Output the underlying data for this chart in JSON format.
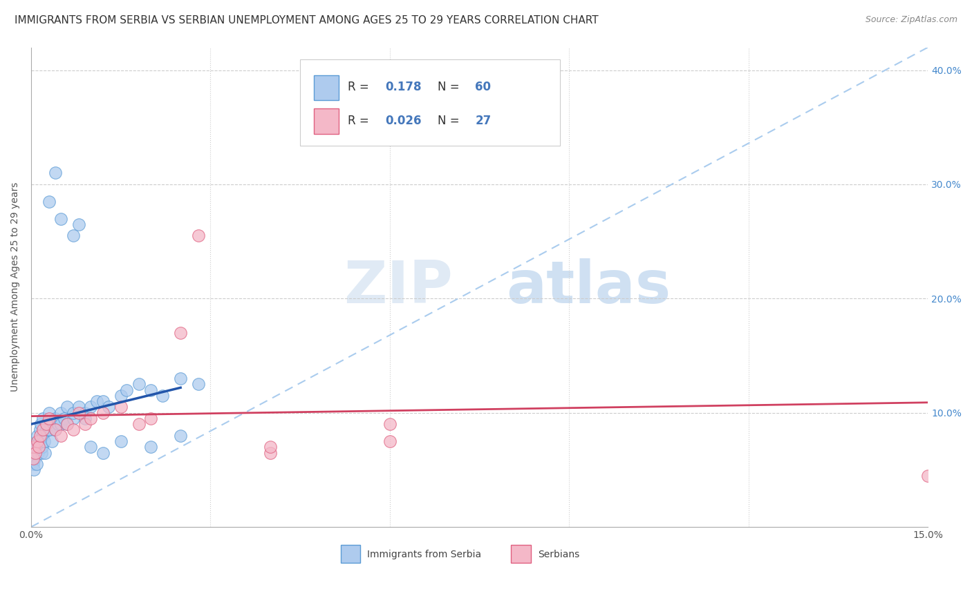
{
  "title": "IMMIGRANTS FROM SERBIA VS SERBIAN UNEMPLOYMENT AMONG AGES 25 TO 29 YEARS CORRELATION CHART",
  "source": "Source: ZipAtlas.com",
  "ylabel": "Unemployment Among Ages 25 to 29 years",
  "xlim": [
    0.0,
    0.15
  ],
  "ylim": [
    0.0,
    0.42
  ],
  "watermark_zip": "ZIP",
  "watermark_atlas": "atlas",
  "scatter_color_blue": "#aecbee",
  "scatter_edgecolor_blue": "#5b9bd5",
  "scatter_color_pink": "#f4b8c8",
  "scatter_edgecolor_pink": "#e06080",
  "line_color_blue": "#2255aa",
  "line_color_pink": "#d04060",
  "dashed_line_color": "#aaccee",
  "blue_line_x": [
    0.0,
    0.025
  ],
  "blue_line_y": [
    0.09,
    0.122
  ],
  "pink_line_x": [
    0.0,
    0.15
  ],
  "pink_line_y": [
    0.097,
    0.109
  ],
  "dashed_line_x": [
    0.0,
    0.15
  ],
  "dashed_line_y": [
    0.0,
    0.42
  ],
  "blue_x": [
    0.0003,
    0.0004,
    0.0005,
    0.0005,
    0.0006,
    0.0007,
    0.0008,
    0.0009,
    0.001,
    0.001,
    0.0012,
    0.0013,
    0.0014,
    0.0015,
    0.0016,
    0.0017,
    0.0018,
    0.002,
    0.002,
    0.0022,
    0.0023,
    0.0025,
    0.003,
    0.003,
    0.0032,
    0.0035,
    0.004,
    0.004,
    0.0045,
    0.005,
    0.005,
    0.0055,
    0.006,
    0.006,
    0.007,
    0.007,
    0.008,
    0.009,
    0.009,
    0.01,
    0.011,
    0.012,
    0.013,
    0.015,
    0.016,
    0.018,
    0.02,
    0.022,
    0.025,
    0.028,
    0.003,
    0.004,
    0.005,
    0.007,
    0.008,
    0.01,
    0.012,
    0.015,
    0.02,
    0.025
  ],
  "blue_y": [
    0.055,
    0.06,
    0.05,
    0.07,
    0.06,
    0.065,
    0.07,
    0.055,
    0.075,
    0.08,
    0.065,
    0.07,
    0.075,
    0.085,
    0.09,
    0.065,
    0.07,
    0.08,
    0.095,
    0.075,
    0.065,
    0.085,
    0.1,
    0.085,
    0.09,
    0.075,
    0.095,
    0.085,
    0.09,
    0.1,
    0.09,
    0.095,
    0.105,
    0.09,
    0.095,
    0.1,
    0.105,
    0.1,
    0.095,
    0.105,
    0.11,
    0.11,
    0.105,
    0.115,
    0.12,
    0.125,
    0.12,
    0.115,
    0.13,
    0.125,
    0.285,
    0.31,
    0.27,
    0.255,
    0.265,
    0.07,
    0.065,
    0.075,
    0.07,
    0.08
  ],
  "pink_x": [
    0.0003,
    0.0005,
    0.0007,
    0.001,
    0.0013,
    0.0015,
    0.002,
    0.0025,
    0.003,
    0.004,
    0.005,
    0.006,
    0.007,
    0.008,
    0.009,
    0.01,
    0.012,
    0.015,
    0.018,
    0.02,
    0.025,
    0.028,
    0.04,
    0.04,
    0.06,
    0.06,
    0.15
  ],
  "pink_y": [
    0.06,
    0.07,
    0.065,
    0.075,
    0.07,
    0.08,
    0.085,
    0.09,
    0.095,
    0.085,
    0.08,
    0.09,
    0.085,
    0.1,
    0.09,
    0.095,
    0.1,
    0.105,
    0.09,
    0.095,
    0.17,
    0.255,
    0.065,
    0.07,
    0.075,
    0.09,
    0.045
  ],
  "background_color": "#ffffff",
  "title_fontsize": 11,
  "source_fontsize": 9,
  "label_fontsize": 10,
  "tick_fontsize": 10,
  "legend_color": "#4477bb"
}
